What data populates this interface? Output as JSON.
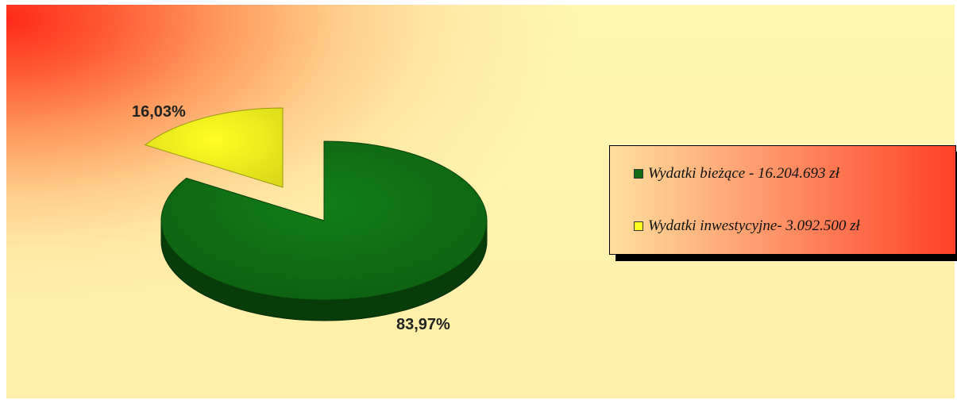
{
  "chart_data": {
    "type": "pie",
    "style": "3d-exploded",
    "slices": [
      {
        "key": "current",
        "label": "Wydatki bieżące - 16.204.693 zł",
        "value": 16204693,
        "percent_label": "83,97%",
        "color": "#0f6e14"
      },
      {
        "key": "investment",
        "label": "Wydatki inwestycyjne- 3.092.500 zł",
        "value": 3092500,
        "percent_label": "16,03%",
        "color": "#ffff1e"
      }
    ],
    "legend_position": "right"
  }
}
